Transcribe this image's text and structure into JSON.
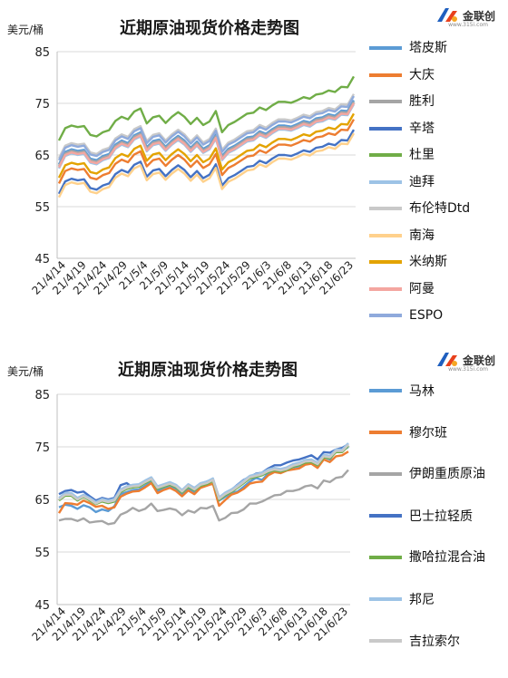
{
  "charts": [
    {
      "title": "近期原油现货价格走势图",
      "ylabel": "美元/桶",
      "logo": {
        "brand": "金联创",
        "sub": "www.315i.com"
      }
    },
    {
      "title": "近期原油现货价格走势图",
      "ylabel": "美元/桶",
      "logo": {
        "brand": "金联创",
        "sub": "www.315i.com"
      }
    }
  ],
  "chart_data": [
    {
      "type": "line",
      "title": "近期原油现货价格走势图",
      "ylabel": "美元/桶",
      "xlabel": "",
      "ylim": [
        45,
        85
      ],
      "yticks": [
        45,
        55,
        65,
        75,
        85
      ],
      "x_tick_labels": [
        "21/4/14",
        "21/4/19",
        "21/4/24",
        "21/4/29",
        "21/5/4",
        "21/5/9",
        "21/5/14",
        "21/5/19",
        "21/5/24",
        "21/5/29",
        "21/6/3",
        "21/6/8",
        "21/6/13",
        "21/6/18",
        "21/6/23"
      ],
      "x_start": "2021-04-14",
      "x_end": "2021-06-23",
      "grid": true,
      "legend_position": "right",
      "series": [
        {
          "name": "塔皮斯",
          "color": "#5b9bd5",
          "values": [
            63.2,
            65.6,
            66.1,
            65.8,
            66.0,
            64.3,
            64.0,
            64.8,
            65.2,
            67.0,
            67.8,
            67.3,
            68.8,
            69.4,
            66.5,
            67.7,
            68.0,
            66.6,
            67.8,
            68.7,
            67.8,
            66.4,
            67.6,
            66.2,
            66.9,
            68.9,
            64.8,
            66.2,
            66.8,
            67.6,
            68.4,
            68.6,
            69.6,
            69.1,
            70.0,
            70.7,
            70.7,
            70.5,
            71.0,
            71.6,
            71.3,
            72.1,
            72.3,
            72.9,
            72.6,
            73.6,
            73.5,
            75.6
          ]
        },
        {
          "name": "大庆",
          "color": "#ed7d31",
          "values": [
            59.5,
            61.9,
            62.4,
            62.1,
            62.3,
            60.6,
            60.3,
            61.1,
            61.5,
            63.3,
            64.1,
            63.6,
            65.1,
            65.7,
            62.8,
            64.0,
            64.3,
            62.9,
            64.1,
            65.0,
            64.1,
            62.7,
            63.9,
            62.5,
            63.2,
            65.2,
            61.1,
            62.5,
            63.1,
            63.9,
            64.7,
            64.9,
            65.9,
            65.4,
            66.3,
            67.0,
            67.0,
            66.8,
            67.3,
            67.9,
            67.6,
            68.4,
            68.6,
            69.2,
            68.9,
            69.9,
            69.8,
            71.9
          ]
        },
        {
          "name": "胜利",
          "color": "#a5a5a5",
          "values": [
            62.9,
            65.3,
            65.8,
            65.5,
            65.7,
            64.0,
            63.7,
            64.5,
            64.9,
            66.7,
            67.5,
            67.0,
            68.5,
            69.1,
            66.2,
            67.4,
            67.7,
            66.3,
            67.5,
            68.4,
            67.5,
            66.1,
            67.3,
            65.9,
            66.6,
            68.6,
            64.5,
            65.9,
            66.5,
            67.3,
            68.1,
            68.3,
            69.3,
            68.8,
            69.7,
            70.4,
            70.4,
            70.2,
            70.7,
            71.3,
            71.0,
            71.8,
            72.0,
            72.6,
            72.3,
            73.3,
            73.2,
            75.3
          ]
        },
        {
          "name": "辛塔",
          "color": "#4472c4",
          "values": [
            57.5,
            59.9,
            60.4,
            60.1,
            60.3,
            58.6,
            58.3,
            59.1,
            59.5,
            61.3,
            62.1,
            61.6,
            63.1,
            63.7,
            60.8,
            62.0,
            62.3,
            60.9,
            62.1,
            63.0,
            62.1,
            60.7,
            61.9,
            60.5,
            61.2,
            63.2,
            59.1,
            60.5,
            61.1,
            61.9,
            62.7,
            62.9,
            63.9,
            63.4,
            64.3,
            65.0,
            65.0,
            64.8,
            65.3,
            65.9,
            65.6,
            66.4,
            66.6,
            67.2,
            66.9,
            67.9,
            67.8,
            69.9
          ]
        },
        {
          "name": "杜里",
          "color": "#70ad47",
          "values": [
            67.8,
            70.2,
            70.7,
            70.4,
            70.6,
            68.9,
            68.6,
            69.4,
            69.8,
            71.6,
            72.4,
            71.9,
            73.4,
            74.0,
            71.1,
            72.3,
            72.6,
            71.2,
            72.4,
            73.3,
            72.4,
            71.0,
            72.2,
            70.8,
            71.5,
            73.5,
            69.4,
            70.8,
            71.4,
            72.2,
            73.0,
            73.2,
            74.2,
            73.7,
            74.6,
            75.3,
            75.3,
            75.1,
            75.6,
            76.2,
            75.9,
            76.7,
            76.9,
            77.5,
            77.2,
            78.2,
            78.1,
            80.2
          ]
        },
        {
          "name": "迪拜",
          "color": "#9dc3e6",
          "values": [
            62.4,
            64.8,
            65.3,
            65.0,
            65.2,
            63.5,
            63.2,
            64.0,
            64.4,
            66.2,
            67.0,
            66.5,
            68.0,
            68.6,
            65.7,
            66.9,
            67.2,
            65.8,
            67.0,
            67.9,
            67.0,
            65.6,
            66.8,
            65.4,
            66.1,
            68.1,
            64.0,
            65.4,
            66.0,
            66.8,
            67.6,
            67.8,
            68.8,
            68.3,
            69.2,
            69.9,
            69.9,
            69.7,
            70.2,
            70.8,
            70.5,
            71.3,
            71.5,
            72.1,
            71.8,
            72.8,
            72.7,
            74.8
          ]
        },
        {
          "name": "布伦特Dtd",
          "color": "#c9c9c9",
          "values": [
            64.4,
            66.8,
            67.3,
            67.0,
            67.2,
            65.5,
            65.2,
            66.0,
            66.4,
            68.2,
            69.0,
            68.5,
            70.0,
            70.6,
            67.7,
            68.9,
            69.2,
            67.8,
            69.0,
            69.9,
            69.0,
            67.6,
            68.8,
            67.4,
            68.1,
            70.1,
            66.0,
            67.4,
            68.0,
            68.8,
            69.6,
            69.8,
            70.8,
            70.3,
            71.2,
            71.9,
            71.9,
            71.7,
            72.2,
            72.8,
            72.5,
            73.3,
            73.5,
            74.1,
            73.8,
            74.8,
            74.7,
            76.8
          ]
        },
        {
          "name": "南海",
          "color": "#ffd18c",
          "values": [
            56.8,
            59.2,
            59.7,
            59.4,
            59.6,
            57.9,
            57.6,
            58.4,
            58.8,
            60.6,
            61.4,
            60.9,
            62.4,
            63.0,
            60.1,
            61.3,
            61.6,
            60.2,
            61.4,
            62.3,
            61.4,
            60.0,
            61.2,
            59.8,
            60.5,
            62.5,
            58.4,
            59.8,
            60.4,
            61.2,
            62.0,
            62.2,
            63.2,
            62.7,
            63.6,
            64.3,
            64.3,
            64.1,
            64.6,
            65.2,
            64.9,
            65.7,
            65.9,
            66.5,
            66.2,
            67.2,
            67.1,
            69.2
          ]
        },
        {
          "name": "米纳斯",
          "color": "#e3a300",
          "values": [
            60.6,
            63.0,
            63.5,
            63.2,
            63.4,
            61.7,
            61.4,
            62.2,
            62.6,
            64.4,
            65.2,
            64.7,
            66.2,
            66.8,
            63.9,
            65.1,
            65.4,
            64.0,
            65.2,
            66.1,
            65.2,
            63.8,
            65.0,
            63.6,
            64.3,
            66.3,
            62.2,
            63.6,
            64.2,
            65.0,
            65.8,
            66.0,
            67.0,
            66.5,
            67.4,
            68.1,
            68.1,
            67.9,
            68.4,
            69.0,
            68.7,
            69.5,
            69.7,
            70.3,
            70.0,
            71.0,
            70.9,
            73.0
          ]
        },
        {
          "name": "阿曼",
          "color": "#f4a6a0",
          "values": [
            62.6,
            65.0,
            65.5,
            65.2,
            65.4,
            63.7,
            63.4,
            64.2,
            64.6,
            66.4,
            67.2,
            66.7,
            68.2,
            68.8,
            65.9,
            67.1,
            67.4,
            66.0,
            67.2,
            68.1,
            67.2,
            65.8,
            67.0,
            65.6,
            66.3,
            68.3,
            64.2,
            65.6,
            66.2,
            67.0,
            67.8,
            68.0,
            69.0,
            68.5,
            69.4,
            70.1,
            70.1,
            69.9,
            70.4,
            71.0,
            70.7,
            71.5,
            71.7,
            72.3,
            72.0,
            73.0,
            72.9,
            75.0
          ]
        },
        {
          "name": "ESPO",
          "color": "#8faadc",
          "values": [
            64.0,
            66.4,
            66.9,
            66.6,
            66.8,
            65.1,
            64.8,
            65.6,
            66.0,
            67.8,
            68.6,
            68.1,
            69.6,
            70.2,
            67.3,
            68.5,
            68.8,
            67.4,
            68.6,
            69.5,
            68.6,
            67.2,
            68.4,
            67.0,
            67.7,
            69.7,
            65.6,
            67.0,
            67.6,
            68.4,
            69.2,
            69.4,
            70.4,
            69.9,
            70.8,
            71.5,
            71.5,
            71.3,
            71.8,
            72.4,
            72.1,
            72.9,
            73.1,
            73.7,
            73.4,
            74.4,
            74.3,
            76.4
          ]
        }
      ]
    },
    {
      "type": "line",
      "title": "近期原油现货价格走势图",
      "ylabel": "美元/桶",
      "xlabel": "",
      "ylim": [
        45,
        85
      ],
      "yticks": [
        45,
        55,
        65,
        75,
        85
      ],
      "x_tick_labels": [
        "21/4/14",
        "21/4/19",
        "21/4/24",
        "21/4/29",
        "21/5/4",
        "21/5/9",
        "21/5/14",
        "21/5/19",
        "21/5/24",
        "21/5/29",
        "21/6/3",
        "21/6/8",
        "21/6/13",
        "21/6/18",
        "21/6/23"
      ],
      "x_start": "2021-04-14",
      "x_end": "2021-06-23",
      "grid": true,
      "legend_position": "right",
      "series": [
        {
          "name": "马林",
          "color": "#5b9bd5",
          "values": [
            63.5,
            64.0,
            63.8,
            63.2,
            63.9,
            63.5,
            62.6,
            63.1,
            62.8,
            63.7,
            66.0,
            66.4,
            66.8,
            66.9,
            67.6,
            68.4,
            66.6,
            67.2,
            67.6,
            67.0,
            66.0,
            67.1,
            66.4,
            67.6,
            68.0,
            68.5,
            64.8,
            65.5,
            66.2,
            66.5,
            67.4,
            68.4,
            69.1,
            68.7,
            70.0,
            70.6,
            70.4,
            70.9,
            71.1,
            71.3,
            72.0,
            72.3,
            71.5,
            73.1,
            72.6,
            74.2,
            74.2,
            75.0
          ]
        },
        {
          "name": "穆尔班",
          "color": "#ed7d31",
          "values": [
            62.4,
            64.3,
            64.2,
            64.0,
            64.8,
            64.3,
            63.6,
            63.8,
            63.2,
            63.5,
            65.5,
            66.1,
            66.5,
            66.6,
            67.3,
            68.1,
            66.2,
            66.8,
            67.2,
            66.6,
            65.6,
            66.7,
            66.0,
            67.2,
            67.6,
            68.0,
            63.8,
            64.9,
            65.9,
            66.3,
            67.0,
            68.0,
            68.3,
            68.4,
            69.6,
            70.2,
            70.0,
            70.5,
            70.7,
            70.9,
            71.6,
            71.8,
            71.0,
            72.6,
            72.1,
            73.2,
            73.4,
            74.1
          ]
        },
        {
          "name": "伊朗重质原油",
          "color": "#a5a5a5",
          "values": [
            61.0,
            61.3,
            61.3,
            60.9,
            61.4,
            60.6,
            60.8,
            60.9,
            60.3,
            60.5,
            62.1,
            62.6,
            63.4,
            62.8,
            63.2,
            64.2,
            62.8,
            63.0,
            63.3,
            63.0,
            62.0,
            62.9,
            62.5,
            63.4,
            63.3,
            63.8,
            61.0,
            61.5,
            62.4,
            62.5,
            63.1,
            64.2,
            64.2,
            64.6,
            65.2,
            65.8,
            65.9,
            66.6,
            66.6,
            66.9,
            67.5,
            67.7,
            67.1,
            68.6,
            68.3,
            69.1,
            69.3,
            70.6
          ]
        },
        {
          "name": "巴士拉轻质",
          "color": "#4472c4",
          "values": [
            66.0,
            66.6,
            66.8,
            66.3,
            66.5,
            65.6,
            64.8,
            65.3,
            65.0,
            65.3,
            67.7,
            68.1,
            67.3,
            67.6,
            68.3,
            68.7,
            67.4,
            67.5,
            68.1,
            67.3,
            66.6,
            67.6,
            67.1,
            68.0,
            68.4,
            68.8,
            65.3,
            66.1,
            66.8,
            67.8,
            68.7,
            69.3,
            69.9,
            70.1,
            70.9,
            71.5,
            71.5,
            72.0,
            72.4,
            72.6,
            73.0,
            73.4,
            72.6,
            74.0,
            73.9,
            74.5,
            74.8,
            75.5
          ]
        },
        {
          "name": "撒哈拉混合油",
          "color": "#70ad47",
          "values": [
            64.8,
            65.7,
            65.7,
            64.8,
            65.5,
            64.8,
            64.1,
            64.6,
            64.3,
            64.6,
            66.4,
            67.0,
            67.3,
            67.4,
            68.1,
            68.7,
            67.0,
            67.4,
            67.8,
            67.3,
            66.3,
            67.4,
            66.7,
            67.6,
            67.9,
            68.5,
            64.9,
            65.8,
            66.4,
            67.2,
            68.1,
            69.0,
            69.3,
            69.6,
            70.2,
            70.5,
            70.3,
            70.6,
            71.2,
            71.5,
            72.0,
            72.1,
            71.5,
            73.0,
            72.8,
            74.0,
            74.0,
            75.2
          ]
        },
        {
          "name": "邦尼",
          "color": "#9dc3e6",
          "values": [
            65.3,
            66.2,
            66.2,
            65.3,
            65.9,
            65.3,
            64.5,
            65.1,
            64.8,
            65.1,
            66.9,
            67.5,
            67.8,
            67.9,
            68.6,
            69.2,
            67.5,
            67.9,
            68.3,
            67.8,
            66.8,
            67.9,
            67.2,
            68.1,
            68.4,
            69.0,
            65.4,
            66.3,
            66.9,
            67.7,
            68.6,
            69.5,
            69.8,
            70.1,
            70.7,
            71.0,
            70.8,
            71.1,
            71.7,
            72.0,
            72.5,
            72.6,
            72.0,
            73.5,
            73.3,
            74.5,
            74.5,
            75.7
          ]
        },
        {
          "name": "吉拉索尔",
          "color": "#c9c9c9",
          "values": [
            65.0,
            65.9,
            65.9,
            65.0,
            65.6,
            65.0,
            64.2,
            64.8,
            64.5,
            64.8,
            66.6,
            67.2,
            67.5,
            67.6,
            68.3,
            68.9,
            67.2,
            67.6,
            68.0,
            67.5,
            66.5,
            67.6,
            66.9,
            67.8,
            68.1,
            68.7,
            65.1,
            66.0,
            66.6,
            67.4,
            68.3,
            69.2,
            69.5,
            69.8,
            70.4,
            70.7,
            70.5,
            70.8,
            71.4,
            71.7,
            72.2,
            72.3,
            71.7,
            73.2,
            73.0,
            74.2,
            74.2,
            75.4
          ]
        }
      ]
    }
  ]
}
